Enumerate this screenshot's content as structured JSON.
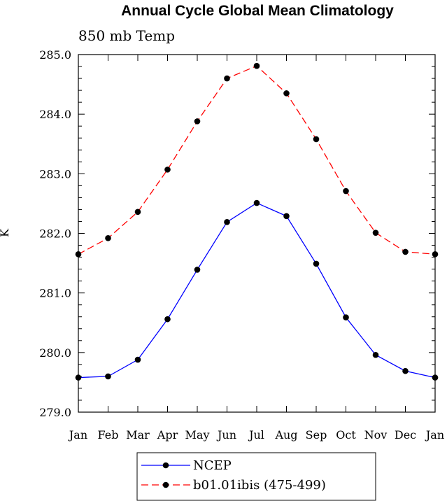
{
  "chart_data": {
    "type": "line",
    "title": "Annual Cycle Global Mean Climatology",
    "subtitle": "850 mb Temp",
    "ylabel": "K",
    "xlabel": "",
    "categories": [
      "Jan",
      "Feb",
      "Mar",
      "Apr",
      "May",
      "Jun",
      "Jul",
      "Aug",
      "Sep",
      "Oct",
      "Nov",
      "Dec",
      "Jan"
    ],
    "ylim": [
      279.0,
      285.0
    ],
    "yticks": [
      "279.0",
      "280.0",
      "281.0",
      "282.0",
      "283.0",
      "284.0",
      "285.0"
    ],
    "legend_position": "bottom-center",
    "series": [
      {
        "name": "NCEP",
        "color": "#0000ff",
        "dash": "solid",
        "values": [
          279.58,
          279.6,
          279.88,
          280.56,
          281.39,
          282.19,
          282.51,
          282.29,
          281.49,
          280.59,
          279.96,
          279.69,
          279.58
        ]
      },
      {
        "name": "b01.01ibis (475-499)",
        "color": "#ff0000",
        "dash": "dashed",
        "values": [
          281.65,
          281.92,
          282.36,
          283.07,
          283.88,
          284.6,
          284.81,
          284.35,
          283.58,
          282.71,
          282.01,
          281.69,
          281.65
        ]
      }
    ]
  }
}
